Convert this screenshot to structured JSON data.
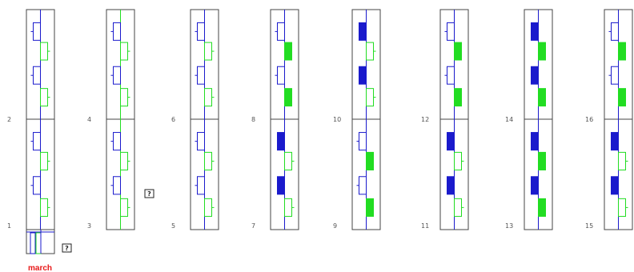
{
  "colors": {
    "blue": "#1a1acc",
    "green": "#22dd22",
    "frame": "#444444"
  },
  "columns": [
    {
      "top_label": "2",
      "bottom_label": "1",
      "style": "outline"
    },
    {
      "top_label": "4",
      "bottom_label": "3",
      "style": "outline"
    },
    {
      "top_label": "6",
      "bottom_label": "5",
      "style": "outline"
    },
    {
      "top_label": "8",
      "bottom_label": "7",
      "style": "mixed"
    },
    {
      "top_label": "10",
      "bottom_label": "9",
      "style": "mixed"
    },
    {
      "top_label": "12",
      "bottom_label": "11",
      "style": "mixed"
    },
    {
      "top_label": "14",
      "bottom_label": "13",
      "style": "solid"
    },
    {
      "top_label": "16",
      "bottom_label": "15",
      "style": "mixed"
    }
  ],
  "legend": {
    "caption": "march",
    "help_glyph": "?"
  }
}
